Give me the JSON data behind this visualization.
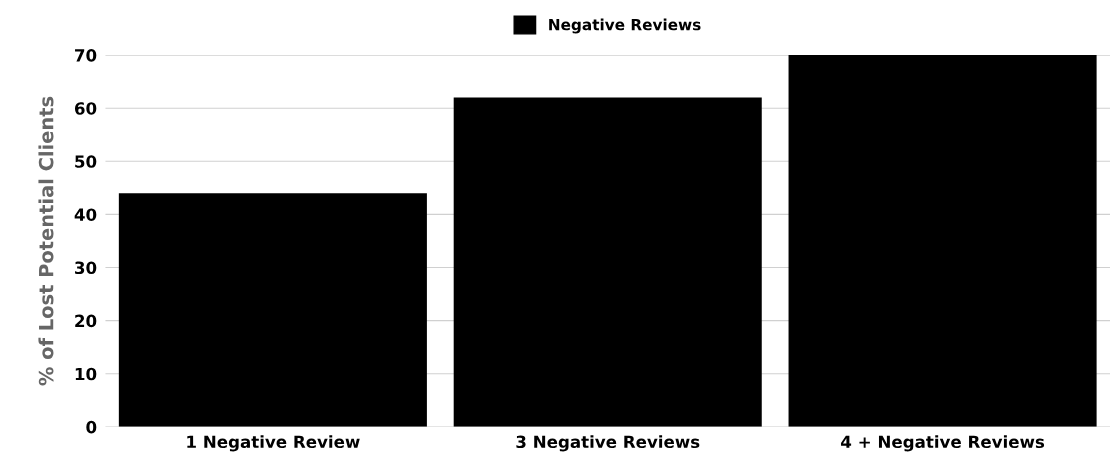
{
  "chart_data": {
    "type": "bar",
    "ylabel": "% of Lost Potential Clients",
    "categories": [
      "1 Negative Review",
      "3 Negative Reviews",
      "4 + Negative Reviews"
    ],
    "series": [
      {
        "name": "Negative Reviews",
        "color": "#000000",
        "values": [
          44,
          62,
          70
        ]
      }
    ],
    "ylim": [
      0,
      70
    ],
    "yticks": [
      0,
      10,
      20,
      30,
      40,
      50,
      60,
      70
    ],
    "grid": "y",
    "legend": "top"
  }
}
